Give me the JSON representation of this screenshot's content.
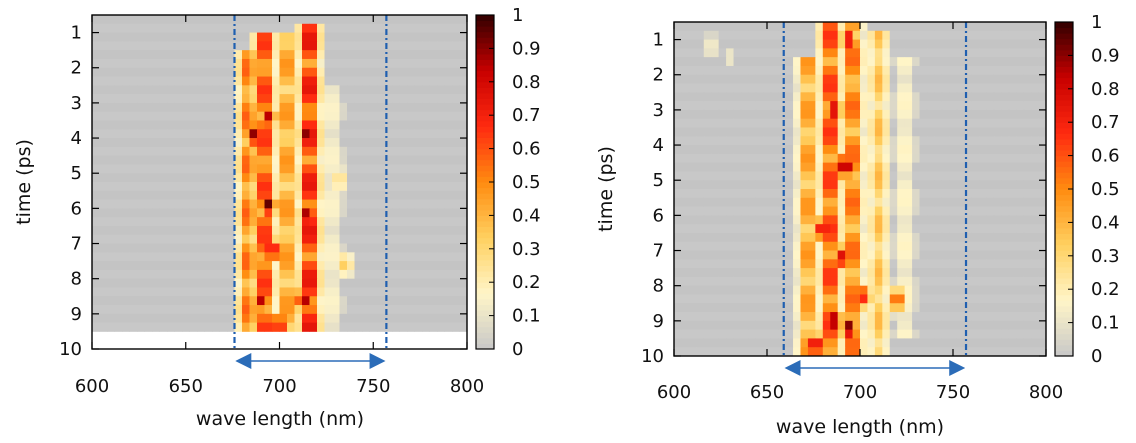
{
  "chart_data": [
    {
      "type": "heatmap",
      "panel": "left",
      "xlabel": "wave length (nm)",
      "ylabel": "time (ps)",
      "xlim": [
        600,
        800
      ],
      "ylim": [
        10,
        0.5
      ],
      "x_ticks": [
        "600",
        "650",
        "700",
        "750",
        "800"
      ],
      "y_ticks": [
        "1",
        "2",
        "3",
        "4",
        "5",
        "6",
        "7",
        "8",
        "9",
        "10"
      ],
      "colorbar_ticks": [
        "0",
        "0.1",
        "0.2",
        "0.3",
        "0.4",
        "0.5",
        "0.6",
        "0.7",
        "0.8",
        "0.9",
        "1"
      ],
      "colorbar_range": [
        0,
        1
      ],
      "colormap": [
        "#c8c8c8",
        "#fff5c8",
        "#ffd060",
        "#ff8c10",
        "#ff2a10",
        "#c80000",
        "#320000"
      ],
      "grid": false,
      "markers": {
        "dashed_lines_x": [
          676,
          757
        ],
        "arrow_range": [
          676,
          757
        ],
        "dash_color": "#1f5fb0",
        "arrow_color": "#2b6cb8"
      },
      "background_until_time": 9.5,
      "bands": [
        {
          "x": 683,
          "t0": 1.5,
          "t1": 9.5,
          "peak": 0.6
        },
        {
          "x": 692,
          "t0": 1.0,
          "t1": 9.5,
          "peak": 0.75
        },
        {
          "x": 704,
          "t0": 1.0,
          "t1": 9.5,
          "peak": 0.55
        },
        {
          "x": 716,
          "t0": 0.8,
          "t1": 9.5,
          "peak": 0.85
        },
        {
          "x": 728,
          "t0": 2.5,
          "t1": 9.5,
          "peak": 0.18
        }
      ],
      "hotspots": [
        {
          "x": 716,
          "t": 1.3,
          "v": 0.95
        },
        {
          "x": 694,
          "t": 3.4,
          "v": 0.85
        },
        {
          "x": 686,
          "t": 3.9,
          "v": 0.9
        },
        {
          "x": 715,
          "t": 3.9,
          "v": 0.95
        },
        {
          "x": 694,
          "t": 5.9,
          "v": 0.95
        },
        {
          "x": 715,
          "t": 6.2,
          "v": 0.95
        },
        {
          "x": 696,
          "t": 7.2,
          "v": 0.85
        },
        {
          "x": 690,
          "t": 8.6,
          "v": 0.85
        },
        {
          "x": 713,
          "t": 8.6,
          "v": 0.9
        },
        {
          "x": 700,
          "t": 9.3,
          "v": 0.8
        },
        {
          "x": 732,
          "t": 5.2,
          "v": 0.3
        },
        {
          "x": 735,
          "t": 7.6,
          "v": 0.35
        }
      ]
    },
    {
      "type": "heatmap",
      "panel": "right",
      "xlabel": "wave length (nm)",
      "ylabel": "time (ps)",
      "xlim": [
        600,
        800
      ],
      "ylim": [
        10,
        0.5
      ],
      "x_ticks": [
        "600",
        "650",
        "700",
        "750",
        "800"
      ],
      "y_ticks": [
        "1",
        "2",
        "3",
        "4",
        "5",
        "6",
        "7",
        "8",
        "9",
        "10"
      ],
      "colorbar_ticks": [
        "0",
        "0.1",
        "0.2",
        "0.3",
        "0.4",
        "0.5",
        "0.6",
        "0.7",
        "0.8",
        "0.9",
        "1"
      ],
      "colorbar_range": [
        0,
        1
      ],
      "colormap": [
        "#c8c8c8",
        "#fff5c8",
        "#ffd060",
        "#ff8c10",
        "#ff2a10",
        "#c80000",
        "#320000"
      ],
      "grid": false,
      "markers": {
        "dashed_lines_x": [
          659,
          757
        ],
        "arrow_range": [
          659,
          757
        ],
        "dash_color": "#1f5fb0",
        "arrow_color": "#2b6cb8"
      },
      "background_until_time": 10.0,
      "bands": [
        {
          "x": 672,
          "t0": 1.5,
          "t1": 10.0,
          "peak": 0.55
        },
        {
          "x": 684,
          "t0": 0.5,
          "t1": 10.0,
          "peak": 0.75
        },
        {
          "x": 696,
          "t0": 0.5,
          "t1": 10.0,
          "peak": 0.65
        },
        {
          "x": 710,
          "t0": 0.8,
          "t1": 10.0,
          "peak": 0.4
        },
        {
          "x": 724,
          "t0": 1.5,
          "t1": 9.5,
          "peak": 0.2
        }
      ],
      "hotspots": [
        {
          "x": 692,
          "t": 4.6,
          "v": 1.0
        },
        {
          "x": 686,
          "t": 9.0,
          "v": 0.95
        },
        {
          "x": 694,
          "t": 9.2,
          "v": 0.95
        },
        {
          "x": 676,
          "t": 9.7,
          "v": 0.9
        },
        {
          "x": 686,
          "t": 3.0,
          "v": 0.85
        },
        {
          "x": 694,
          "t": 1.0,
          "v": 0.8
        },
        {
          "x": 680,
          "t": 6.4,
          "v": 0.85
        },
        {
          "x": 690,
          "t": 7.2,
          "v": 0.8
        },
        {
          "x": 702,
          "t": 8.3,
          "v": 0.7
        },
        {
          "x": 720,
          "t": 8.4,
          "v": 0.65
        },
        {
          "x": 620,
          "t": 1.2,
          "v": 0.15
        },
        {
          "x": 630,
          "t": 1.5,
          "v": 0.12
        }
      ]
    }
  ]
}
